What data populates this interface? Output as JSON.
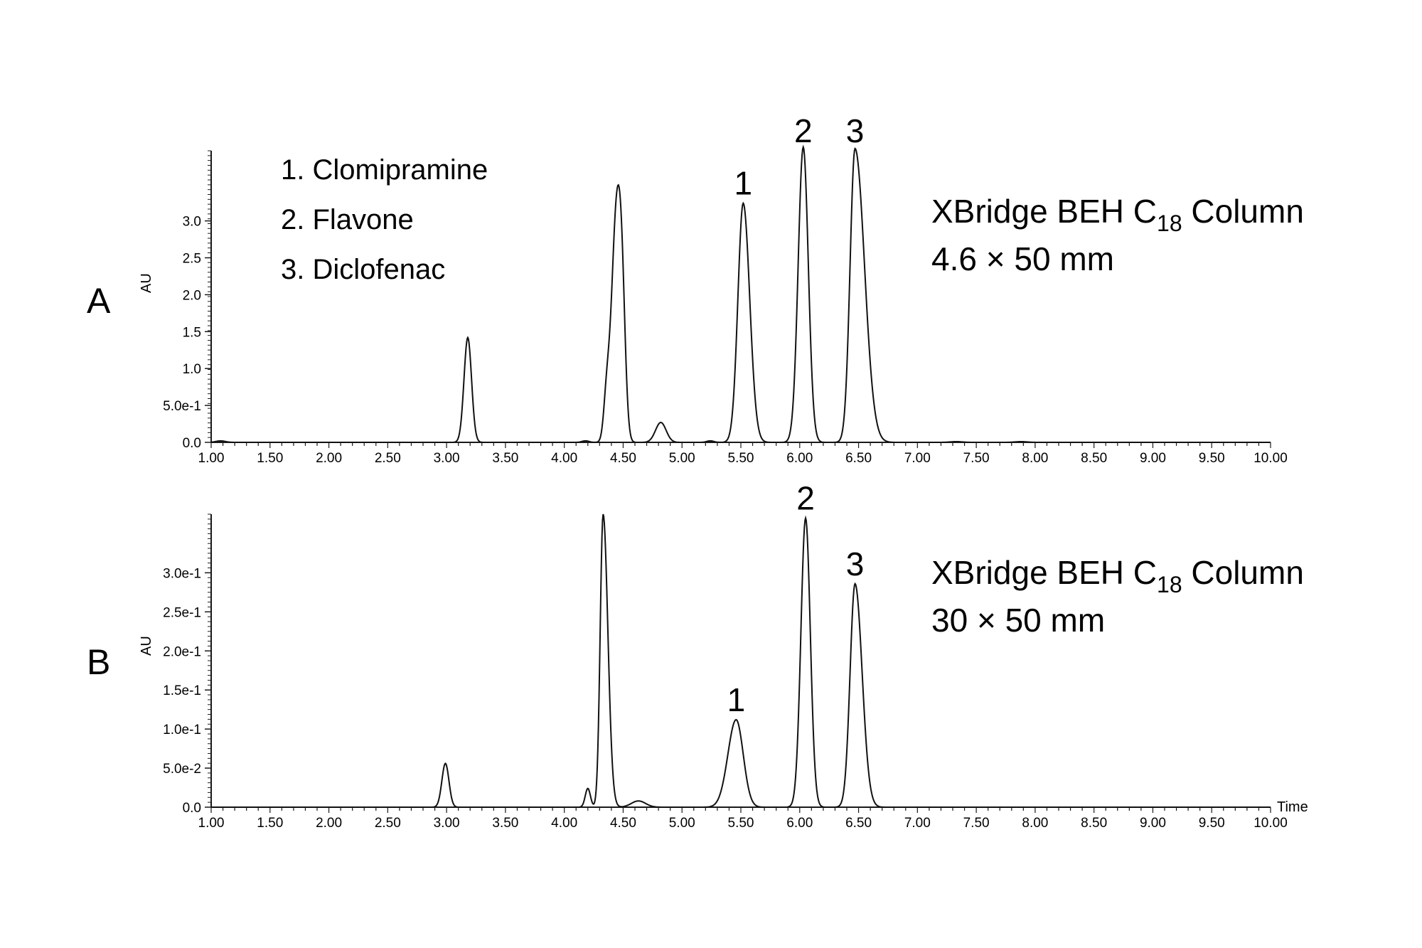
{
  "legend": {
    "items": [
      "1. Clomipramine",
      "2. Flavone",
      "3. Diclofenac"
    ]
  },
  "chart_data": [
    {
      "type": "line",
      "panel_label": "A",
      "annotation": {
        "line1_prefix": "XBridge BEH C",
        "line1_subscript": "18",
        "line1_suffix": " Column",
        "line2": "4.6 × 50 mm"
      },
      "ylabel": "AU",
      "xlabel": "",
      "xlim": [
        1.0,
        10.0
      ],
      "ylim": [
        0,
        3.95
      ],
      "x_ticks": [
        "1.00",
        "1.50",
        "2.00",
        "2.50",
        "3.00",
        "3.50",
        "4.00",
        "4.50",
        "5.00",
        "5.50",
        "6.00",
        "6.50",
        "7.00",
        "7.50",
        "8.00",
        "8.50",
        "9.00",
        "9.50",
        "10.00"
      ],
      "y_ticks": [
        {
          "value": 0.0,
          "label": "0.0"
        },
        {
          "value": 0.5,
          "label": "5.0e-1"
        },
        {
          "value": 1.0,
          "label": "1.0"
        },
        {
          "value": 1.5,
          "label": "1.5"
        },
        {
          "value": 2.0,
          "label": "2.0"
        },
        {
          "value": 2.5,
          "label": "2.5"
        },
        {
          "value": 3.0,
          "label": "3.0"
        }
      ],
      "peaks": [
        {
          "rt": 1.08,
          "height": 0.02,
          "width": 0.04
        },
        {
          "rt": 3.18,
          "height": 1.42,
          "width": 0.032
        },
        {
          "rt": 4.18,
          "height": 0.02,
          "width": 0.03
        },
        {
          "rt": 4.36,
          "height": 0.58,
          "width": 0.025
        },
        {
          "rt": 4.44,
          "height": 2.92,
          "width": 0.04
        },
        {
          "rt": 4.49,
          "height": 1.5,
          "width": 0.03
        },
        {
          "rt": 4.82,
          "height": 0.27,
          "width": 0.045
        },
        {
          "rt": 5.24,
          "height": 0.02,
          "width": 0.03
        },
        {
          "rt": 5.52,
          "height": 3.24,
          "width": 0.045,
          "tail": 0.055
        },
        {
          "rt": 6.03,
          "height": 4.0,
          "width": 0.043
        },
        {
          "rt": 6.47,
          "height": 3.98,
          "width": 0.042,
          "tail": 0.08
        },
        {
          "rt": 7.33,
          "height": 0.01,
          "width": 0.05
        },
        {
          "rt": 7.88,
          "height": 0.01,
          "width": 0.05
        }
      ],
      "peak_labels": [
        {
          "x": 5.52,
          "text": "1"
        },
        {
          "x": 6.03,
          "text": "2"
        },
        {
          "x": 6.47,
          "text": "3"
        }
      ]
    },
    {
      "type": "line",
      "panel_label": "B",
      "annotation": {
        "line1_prefix": "XBridge BEH C",
        "line1_subscript": "18",
        "line1_suffix": " Column",
        "line2": "30 × 50 mm"
      },
      "ylabel": "AU",
      "xlabel": "Time",
      "xlim": [
        1.0,
        10.0
      ],
      "ylim": [
        0,
        0.375
      ],
      "x_ticks": [
        "1.00",
        "1.50",
        "2.00",
        "2.50",
        "3.00",
        "3.50",
        "4.00",
        "4.50",
        "5.00",
        "5.50",
        "6.00",
        "6.50",
        "7.00",
        "7.50",
        "8.00",
        "8.50",
        "9.00",
        "9.50",
        "10.00"
      ],
      "y_ticks": [
        {
          "value": 0.0,
          "label": "0.0"
        },
        {
          "value": 0.05,
          "label": "5.0e-2"
        },
        {
          "value": 0.1,
          "label": "1.0e-1"
        },
        {
          "value": 0.15,
          "label": "1.5e-1"
        },
        {
          "value": 0.2,
          "label": "2.0e-1"
        },
        {
          "value": 0.25,
          "label": "2.5e-1"
        },
        {
          "value": 0.3,
          "label": "3.0e-1"
        }
      ],
      "peaks": [
        {
          "rt": 2.99,
          "height": 0.056,
          "width": 0.03
        },
        {
          "rt": 4.2,
          "height": 0.024,
          "width": 0.022
        },
        {
          "rt": 4.33,
          "height": 0.375,
          "width": 0.025,
          "tail": 0.04
        },
        {
          "rt": 4.63,
          "height": 0.008,
          "width": 0.06
        },
        {
          "rt": 5.46,
          "height": 0.112,
          "width": 0.07,
          "tail": 0.06
        },
        {
          "rt": 6.05,
          "height": 0.37,
          "width": 0.04
        },
        {
          "rt": 6.47,
          "height": 0.286,
          "width": 0.042,
          "tail": 0.06
        }
      ],
      "peak_labels": [
        {
          "x": 5.46,
          "text": "1"
        },
        {
          "x": 6.05,
          "text": "2"
        },
        {
          "x": 6.47,
          "text": "3"
        }
      ]
    }
  ]
}
